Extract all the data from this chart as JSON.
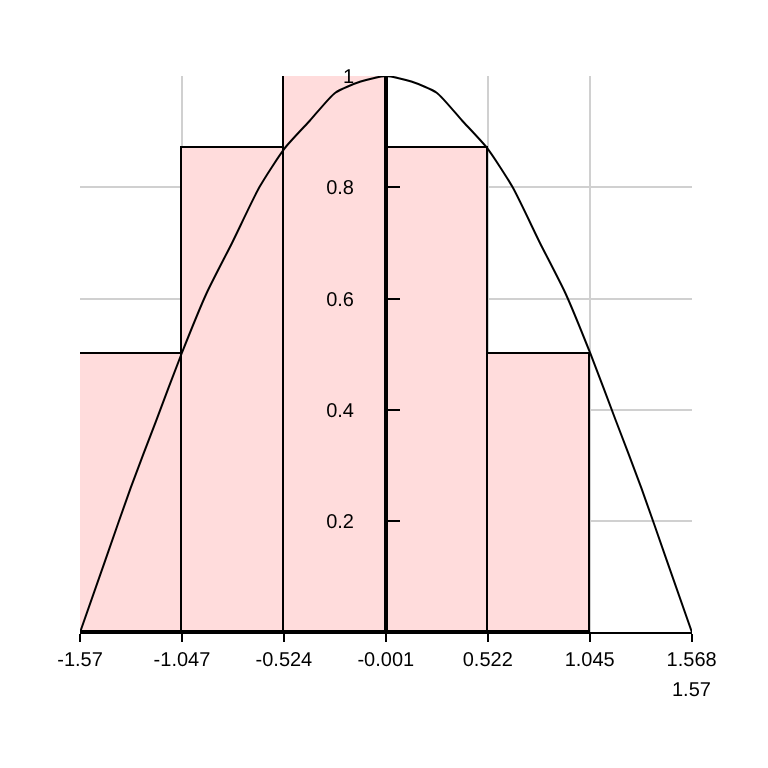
{
  "chart_data": {
    "type": "histogram",
    "bins": [
      -1.57,
      -1.047,
      -0.524,
      -0.001,
      0.522,
      1.045
    ],
    "values": [
      0.5,
      0.87,
      1,
      0.87,
      0.5
    ],
    "color": "#ffdcdc",
    "series": [
      {
        "type": "line",
        "color": "#000000",
        "x": [
          -1.57,
          -1.44,
          -1.31,
          -1.18,
          -1.05,
          -0.92,
          -0.79,
          -0.65,
          -0.52,
          -0.39,
          -0.26,
          -0.13,
          0,
          0.13,
          0.26,
          0.39,
          0.52,
          0.65,
          0.79,
          0.92,
          1.05,
          1.18,
          1.31,
          1.44,
          1.57
        ],
        "values": [
          0,
          0.13,
          0.26,
          0.38,
          0.5,
          0.61,
          0.7,
          0.8,
          0.87,
          0.92,
          0.97,
          0.99,
          1,
          0.99,
          0.97,
          0.92,
          0.87,
          0.8,
          0.7,
          0.61,
          0.5,
          0.38,
          0.26,
          0.13,
          0
        ]
      }
    ],
    "xlim": [
      -1.57,
      1.57
    ],
    "ylim": [
      0,
      1
    ],
    "xticks": [
      -1.57,
      -1.047,
      -0.524,
      -0.001,
      0.522,
      1.045,
      1.568
    ],
    "annotations": [
      {
        "text": "1.57",
        "x": 1.57,
        "y": 0
      }
    ],
    "yticks": [
      0.2,
      0.4,
      0.6,
      0.8,
      1
    ],
    "grid": true,
    "marker": "none",
    "line_style": "solid"
  }
}
